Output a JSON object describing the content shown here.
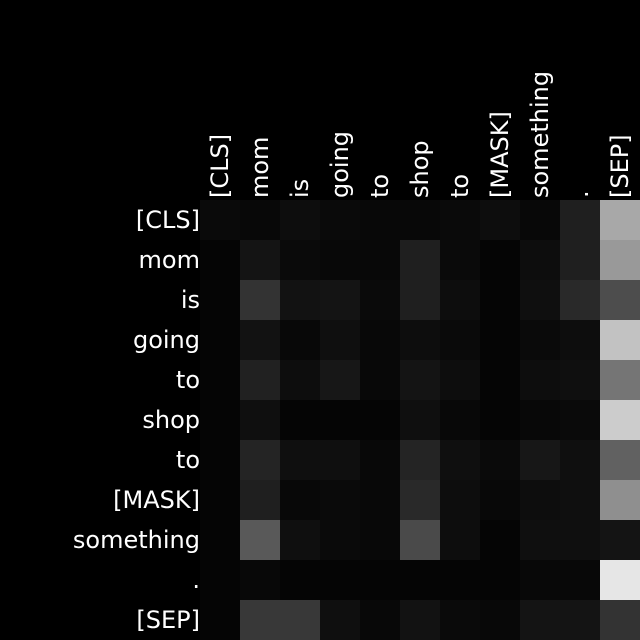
{
  "chart_data": {
    "type": "heatmap",
    "colormap": "grayscale (black = 0, white = 1)",
    "tokens": [
      "[CLS]",
      "mom",
      "is",
      "going",
      "to",
      "shop",
      "to",
      "[MASK]",
      "something",
      ".",
      "[SEP]"
    ],
    "x_labels": [
      "[CLS]",
      "mom",
      "is",
      "going",
      "to",
      "shop",
      "to",
      "[MASK]",
      "something",
      ".",
      "[SEP]"
    ],
    "y_labels": [
      "[CLS]",
      "mom",
      "is",
      "going",
      "to",
      "shop",
      "to",
      "[MASK]",
      "something",
      ".",
      "[SEP]"
    ],
    "values": [
      [
        0.04,
        0.03,
        0.05,
        0.04,
        0.03,
        0.03,
        0.04,
        0.05,
        0.03,
        0.12,
        0.66
      ],
      [
        0.02,
        0.08,
        0.04,
        0.03,
        0.03,
        0.12,
        0.04,
        0.02,
        0.05,
        0.12,
        0.6
      ],
      [
        0.02,
        0.2,
        0.07,
        0.08,
        0.04,
        0.12,
        0.05,
        0.02,
        0.06,
        0.16,
        0.3
      ],
      [
        0.02,
        0.07,
        0.03,
        0.06,
        0.03,
        0.05,
        0.04,
        0.02,
        0.04,
        0.05,
        0.76
      ],
      [
        0.02,
        0.13,
        0.05,
        0.09,
        0.03,
        0.08,
        0.05,
        0.02,
        0.05,
        0.06,
        0.46
      ],
      [
        0.02,
        0.06,
        0.02,
        0.02,
        0.02,
        0.06,
        0.03,
        0.02,
        0.03,
        0.04,
        0.8
      ],
      [
        0.02,
        0.14,
        0.06,
        0.06,
        0.03,
        0.14,
        0.06,
        0.04,
        0.09,
        0.06,
        0.38
      ],
      [
        0.02,
        0.12,
        0.03,
        0.04,
        0.03,
        0.16,
        0.05,
        0.03,
        0.05,
        0.06,
        0.56
      ],
      [
        0.02,
        0.35,
        0.06,
        0.04,
        0.03,
        0.29,
        0.05,
        0.02,
        0.06,
        0.06,
        0.08
      ],
      [
        0.02,
        0.03,
        0.02,
        0.02,
        0.02,
        0.02,
        0.02,
        0.02,
        0.03,
        0.03,
        0.9
      ],
      [
        0.02,
        0.22,
        0.22,
        0.06,
        0.03,
        0.07,
        0.04,
        0.03,
        0.08,
        0.08,
        0.2
      ]
    ]
  }
}
